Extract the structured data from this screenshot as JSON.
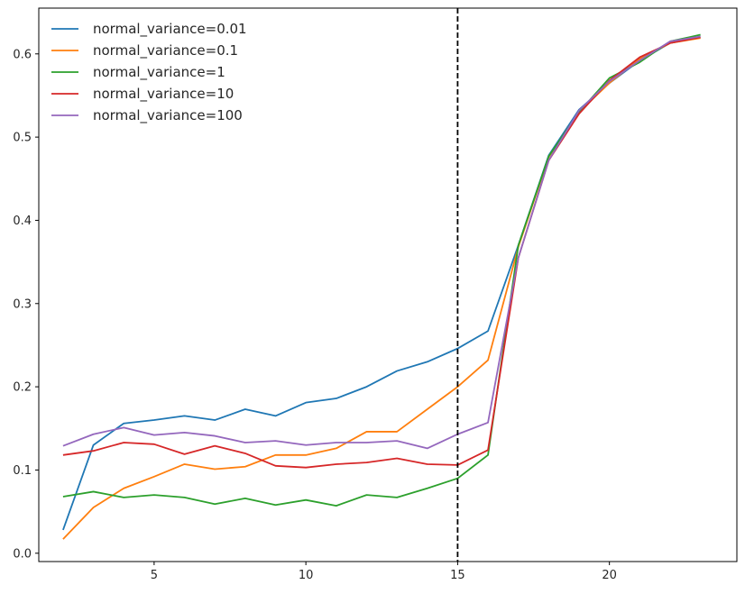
{
  "chart_data": {
    "type": "line",
    "title": "",
    "xlabel": "",
    "ylabel": "",
    "xlim": [
      1.2,
      24.2
    ],
    "ylim": [
      -0.01,
      0.655
    ],
    "xticks": [
      5,
      10,
      15,
      20
    ],
    "yticks": [
      0.0,
      0.1,
      0.2,
      0.3,
      0.4,
      0.5,
      0.6
    ],
    "grid": false,
    "legend_position": "top-left",
    "vertical_line": {
      "x": 15,
      "style": "dashed",
      "color": "#000000"
    },
    "x": [
      2,
      3,
      4,
      5,
      6,
      7,
      8,
      9,
      10,
      11,
      12,
      13,
      14,
      15,
      16,
      17,
      18,
      19,
      20,
      21,
      22,
      23
    ],
    "series": [
      {
        "name": "normal_variance=0.01",
        "color": "#1f77b4",
        "values": [
          0.028,
          0.13,
          0.156,
          0.16,
          0.165,
          0.16,
          0.173,
          0.165,
          0.181,
          0.186,
          0.2,
          0.219,
          0.23,
          0.246,
          0.267,
          0.37,
          0.478,
          0.533,
          0.565,
          0.592,
          0.613,
          0.62
        ]
      },
      {
        "name": "normal_variance=0.1",
        "color": "#ff7f0e",
        "values": [
          0.017,
          0.055,
          0.078,
          0.092,
          0.107,
          0.101,
          0.104,
          0.118,
          0.118,
          0.126,
          0.146,
          0.146,
          0.173,
          0.2,
          0.232,
          0.368,
          0.476,
          0.53,
          0.565,
          0.594,
          0.613,
          0.619
        ]
      },
      {
        "name": "normal_variance=1",
        "color": "#2ca02c",
        "values": [
          0.068,
          0.074,
          0.067,
          0.07,
          0.067,
          0.059,
          0.066,
          0.058,
          0.064,
          0.057,
          0.07,
          0.067,
          0.078,
          0.09,
          0.118,
          0.37,
          0.477,
          0.53,
          0.571,
          0.59,
          0.615,
          0.623
        ]
      },
      {
        "name": "normal_variance=10",
        "color": "#d62728",
        "values": [
          0.118,
          0.123,
          0.133,
          0.131,
          0.119,
          0.129,
          0.12,
          0.105,
          0.103,
          0.107,
          0.109,
          0.114,
          0.107,
          0.106,
          0.124,
          0.355,
          0.472,
          0.528,
          0.568,
          0.596,
          0.613,
          0.62
        ]
      },
      {
        "name": "normal_variance=100",
        "color": "#9467bd",
        "values": [
          0.129,
          0.143,
          0.151,
          0.142,
          0.145,
          0.141,
          0.133,
          0.135,
          0.13,
          0.133,
          0.133,
          0.135,
          0.126,
          0.143,
          0.157,
          0.355,
          0.472,
          0.532,
          0.567,
          0.592,
          0.615,
          0.621
        ]
      }
    ]
  }
}
